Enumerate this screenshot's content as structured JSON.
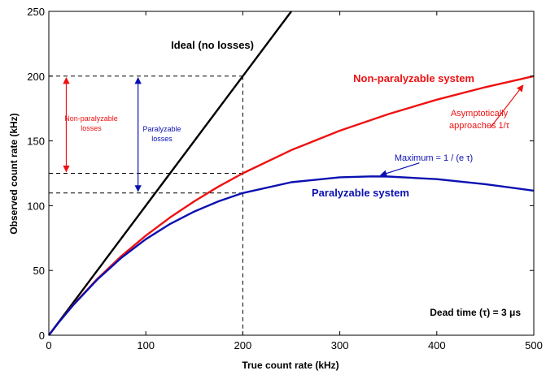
{
  "chart_data": {
    "type": "line",
    "xlabel": "True count rate (kHz)",
    "ylabel": "Observed count rate (kHz)",
    "xlim": [
      0,
      500
    ],
    "ylim": [
      0,
      250
    ],
    "xticks": [
      "0",
      "100",
      "200",
      "300",
      "400",
      "500"
    ],
    "yticks": [
      "0",
      "50",
      "100",
      "150",
      "200",
      "250"
    ],
    "grid": false,
    "legend": "none",
    "series": [
      {
        "name": "Ideal (no losses)",
        "color": "#000000",
        "x": [
          0,
          50,
          100,
          150,
          200,
          250
        ],
        "y": [
          0,
          50,
          100,
          150,
          200,
          250
        ]
      },
      {
        "name": "Non-paralyzable system",
        "color": "#ee1111",
        "x": [
          0,
          10,
          25,
          50,
          75,
          100,
          125,
          150,
          175,
          200,
          250,
          300,
          350,
          400,
          450,
          500
        ],
        "y": [
          0,
          9.7,
          23.3,
          43.5,
          61.2,
          76.9,
          90.9,
          103.4,
          114.8,
          125.0,
          142.9,
          157.9,
          170.7,
          181.8,
          191.5,
          200.0
        ]
      },
      {
        "name": "Paralyzable system",
        "color": "#0a10b0",
        "x": [
          0,
          10,
          25,
          50,
          75,
          100,
          125,
          150,
          175,
          200,
          250,
          300,
          333,
          350,
          400,
          450,
          500
        ],
        "y": [
          0,
          9.7,
          23.1,
          43.0,
          59.9,
          74.1,
          85.9,
          95.5,
          103.4,
          109.8,
          118.1,
          121.9,
          122.6,
          122.5,
          120.5,
          116.6,
          111.6
        ]
      }
    ],
    "annotations": {
      "ideal_label": "Ideal (no losses)",
      "nonpar_label": "Non-paralyzable system",
      "par_label": "Paralyzable system",
      "asymptote_line1": "Asymptotically",
      "asymptote_line2": "approaches 1/τ",
      "maximum_label": "Maximum = 1 / (e τ)",
      "nonpar_losses_line1": "Non-paralyzable",
      "nonpar_losses_line2": "losses",
      "par_losses_line1": "Paralyzable",
      "par_losses_line2": "losses",
      "dead_time": "Dead time (τ) = 3 μs"
    },
    "reference_lines": {
      "x": 200,
      "y_levels": [
        200,
        125,
        109.8
      ]
    }
  }
}
